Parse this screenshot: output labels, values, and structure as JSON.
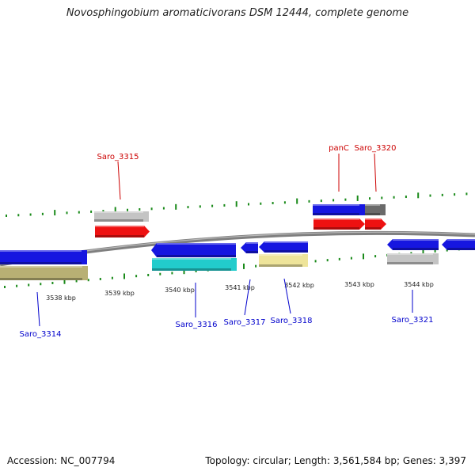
{
  "title": "Novosphingobium aromaticivorans DSM 12444, complete genome",
  "footer": {
    "accession": "Accession: NC_007794",
    "summary": "Topology: circular; Length: 3,561,584 bp; Genes: 3,397"
  },
  "colors": {
    "backbone": "#7f7f7f",
    "tick": "#1a8a1a",
    "top_label": "#cc0000",
    "bottom_label": "#0000cc",
    "blue": "#1616e0",
    "red": "#ee1111",
    "grey": "#c4c4c4",
    "dark_grey": "#6a6a6a",
    "cyan": "#22cccc",
    "khaki": "#b8b074",
    "pale_yellow": "#eee49a"
  },
  "scale_labels": [
    "3538 kbp",
    "3539 kbp",
    "3540 kbp",
    "3541 kbp",
    "3542 kbp",
    "3543 kbp",
    "3544 kbp"
  ],
  "genes_top": [
    "Saro_3315",
    "panC",
    "Saro_3320"
  ],
  "genes_bottom": [
    "Saro_3314",
    "Saro_3316",
    "Saro_3317",
    "Saro_3318",
    "Saro_3321"
  ]
}
